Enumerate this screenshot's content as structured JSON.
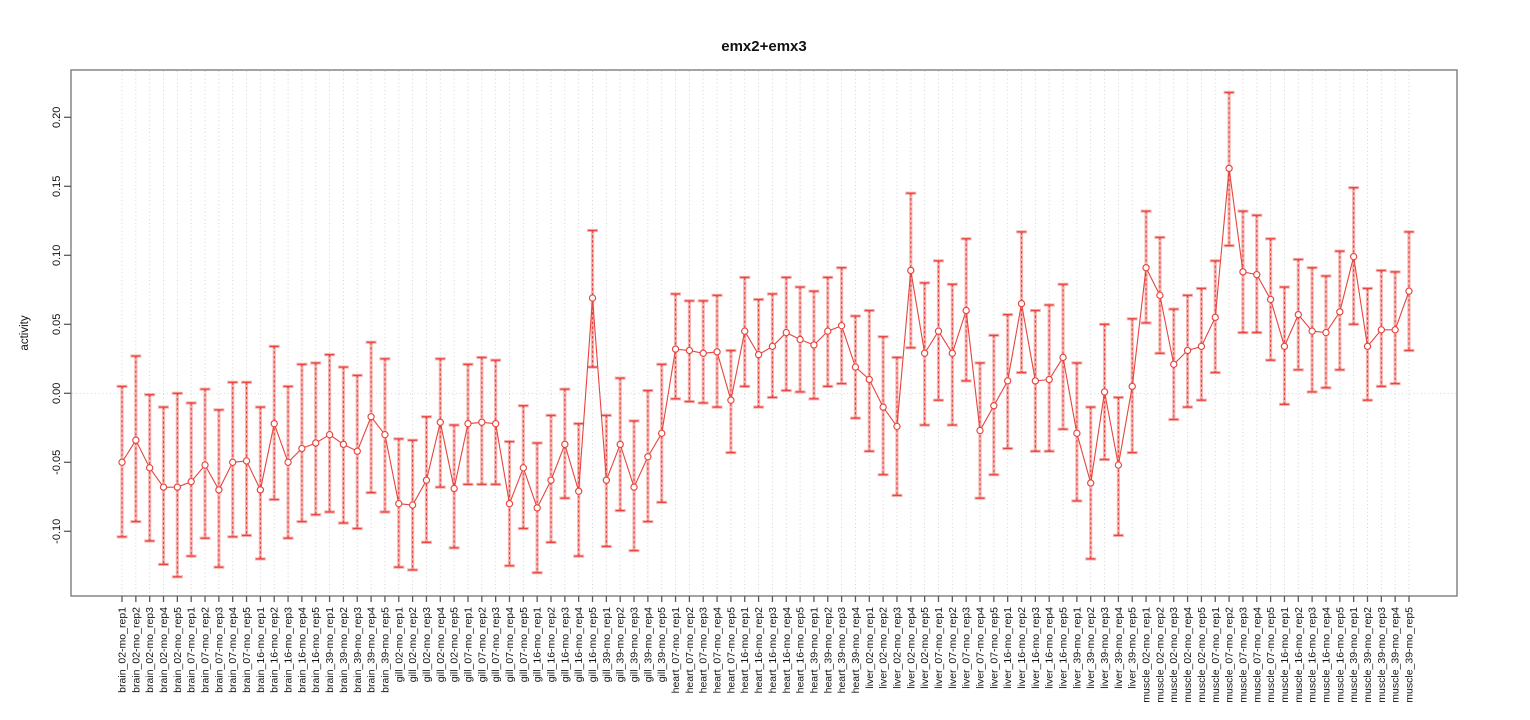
{
  "chart_data": {
    "type": "line",
    "title": "emx2+emx3",
    "xlabel": "",
    "ylabel": "activity",
    "grid": "vertical-dotted-per-category, dotted-zero-line",
    "legend": "none",
    "marker": "open-circle",
    "error_bars": "dashed-red-with-caps plus translucent-salmon-band",
    "ylim": [
      -0.147,
      0.234
    ],
    "ytick_values": [
      -0.1,
      -0.05,
      0.0,
      0.05,
      0.1,
      0.15,
      0.2
    ],
    "ytick_labels": [
      "-0.10",
      "-0.05",
      "0.00",
      "0.05",
      "0.10",
      "0.15",
      "0.20"
    ],
    "categories": [
      "brain_02-mo_rep1",
      "brain_02-mo_rep2",
      "brain_02-mo_rep3",
      "brain_02-mo_rep4",
      "brain_02-mo_rep5",
      "brain_07-mo_rep1",
      "brain_07-mo_rep2",
      "brain_07-mo_rep3",
      "brain_07-mo_rep4",
      "brain_07-mo_rep5",
      "brain_16-mo_rep1",
      "brain_16-mo_rep2",
      "brain_16-mo_rep3",
      "brain_16-mo_rep4",
      "brain_16-mo_rep5",
      "brain_39-mo_rep1",
      "brain_39-mo_rep2",
      "brain_39-mo_rep3",
      "brain_39-mo_rep4",
      "brain_39-mo_rep5",
      "gill_02-mo_rep1",
      "gill_02-mo_rep2",
      "gill_02-mo_rep3",
      "gill_02-mo_rep4",
      "gill_02-mo_rep5",
      "gill_07-mo_rep1",
      "gill_07-mo_rep2",
      "gill_07-mo_rep3",
      "gill_07-mo_rep4",
      "gill_07-mo_rep5",
      "gill_16-mo_rep1",
      "gill_16-mo_rep2",
      "gill_16-mo_rep3",
      "gill_16-mo_rep4",
      "gill_16-mo_rep5",
      "gill_39-mo_rep1",
      "gill_39-mo_rep2",
      "gill_39-mo_rep3",
      "gill_39-mo_rep4",
      "gill_39-mo_rep5",
      "heart_07-mo_rep1",
      "heart_07-mo_rep2",
      "heart_07-mo_rep3",
      "heart_07-mo_rep4",
      "heart_07-mo_rep5",
      "heart_16-mo_rep1",
      "heart_16-mo_rep2",
      "heart_16-mo_rep3",
      "heart_16-mo_rep4",
      "heart_16-mo_rep5",
      "heart_39-mo_rep1",
      "heart_39-mo_rep2",
      "heart_39-mo_rep3",
      "heart_39-mo_rep4",
      "liver_02-mo_rep1",
      "liver_02-mo_rep2",
      "liver_02-mo_rep3",
      "liver_02-mo_rep4",
      "liver_02-mo_rep5",
      "liver_07-mo_rep1",
      "liver_07-mo_rep2",
      "liver_07-mo_rep3",
      "liver_07-mo_rep4",
      "liver_07-mo_rep5",
      "liver_16-mo_rep1",
      "liver_16-mo_rep2",
      "liver_16-mo_rep3",
      "liver_16-mo_rep4",
      "liver_16-mo_rep5",
      "liver_39-mo_rep1",
      "liver_39-mo_rep2",
      "liver_39-mo_rep3",
      "liver_39-mo_rep4",
      "liver_39-mo_rep5",
      "muscle_02-mo_rep1",
      "muscle_02-mo_rep2",
      "muscle_02-mo_rep3",
      "muscle_02-mo_rep4",
      "muscle_02-mo_rep5",
      "muscle_07-mo_rep1",
      "muscle_07-mo_rep2",
      "muscle_07-mo_rep3",
      "muscle_07-mo_rep4",
      "muscle_07-mo_rep5",
      "muscle_16-mo_rep1",
      "muscle_16-mo_rep2",
      "muscle_16-mo_rep3",
      "muscle_16-mo_rep4",
      "muscle_16-mo_rep5",
      "muscle_39-mo_rep1",
      "muscle_39-mo_rep2",
      "muscle_39-mo_rep3",
      "muscle_39-mo_rep4",
      "muscle_39-mo_rep5"
    ],
    "series": [
      {
        "name": "activity",
        "values": [
          -0.05,
          -0.034,
          -0.054,
          -0.068,
          -0.068,
          -0.064,
          -0.052,
          -0.07,
          -0.05,
          -0.049,
          -0.07,
          -0.022,
          -0.05,
          -0.04,
          -0.036,
          -0.03,
          -0.037,
          -0.042,
          -0.017,
          -0.03,
          -0.08,
          -0.081,
          -0.063,
          -0.021,
          -0.069,
          -0.022,
          -0.021,
          -0.022,
          -0.08,
          -0.054,
          -0.083,
          -0.063,
          -0.037,
          -0.071,
          0.069,
          -0.063,
          -0.037,
          -0.068,
          -0.046,
          -0.029,
          0.032,
          0.031,
          0.029,
          0.03,
          -0.005,
          0.045,
          0.028,
          0.034,
          0.044,
          0.039,
          0.035,
          0.045,
          0.049,
          0.019,
          0.01,
          -0.01,
          -0.024,
          0.089,
          0.029,
          0.045,
          0.029,
          0.06,
          -0.027,
          -0.009,
          0.009,
          0.065,
          0.009,
          0.01,
          0.026,
          -0.029,
          -0.065,
          0.001,
          -0.052,
          0.005,
          0.091,
          0.071,
          0.021,
          0.031,
          0.034,
          0.055,
          0.163,
          0.088,
          0.086,
          0.068,
          0.034,
          0.057,
          0.045,
          0.044,
          0.059,
          0.099,
          0.034,
          0.046,
          0.046,
          0.074
        ],
        "err_lo": [
          -0.104,
          -0.093,
          -0.107,
          -0.124,
          -0.133,
          -0.118,
          -0.105,
          -0.126,
          -0.104,
          -0.103,
          -0.12,
          -0.077,
          -0.105,
          -0.093,
          -0.088,
          -0.086,
          -0.094,
          -0.098,
          -0.072,
          -0.086,
          -0.126,
          -0.128,
          -0.108,
          -0.068,
          -0.112,
          -0.066,
          -0.066,
          -0.066,
          -0.125,
          -0.098,
          -0.13,
          -0.108,
          -0.076,
          -0.118,
          0.019,
          -0.111,
          -0.085,
          -0.114,
          -0.093,
          -0.079,
          -0.004,
          -0.006,
          -0.007,
          -0.01,
          -0.043,
          0.005,
          -0.01,
          -0.003,
          0.002,
          0.001,
          -0.004,
          0.005,
          0.007,
          -0.018,
          -0.042,
          -0.059,
          -0.074,
          0.033,
          -0.023,
          -0.005,
          -0.023,
          0.009,
          -0.076,
          -0.059,
          -0.04,
          0.015,
          -0.042,
          -0.042,
          -0.026,
          -0.078,
          -0.12,
          -0.048,
          -0.103,
          -0.043,
          0.051,
          0.029,
          -0.019,
          -0.01,
          -0.005,
          0.015,
          0.107,
          0.044,
          0.044,
          0.024,
          -0.008,
          0.017,
          0.001,
          0.004,
          0.017,
          0.05,
          -0.005,
          0.005,
          0.007,
          0.031
        ],
        "err_hi": [
          0.005,
          0.027,
          -0.001,
          -0.01,
          0.0,
          -0.007,
          0.003,
          -0.012,
          0.008,
          0.008,
          -0.01,
          0.034,
          0.005,
          0.021,
          0.022,
          0.028,
          0.019,
          0.013,
          0.037,
          0.025,
          -0.033,
          -0.034,
          -0.017,
          0.025,
          -0.023,
          0.021,
          0.026,
          0.024,
          -0.035,
          -0.009,
          -0.036,
          -0.016,
          0.003,
          -0.022,
          0.118,
          -0.016,
          0.011,
          -0.02,
          0.002,
          0.021,
          0.072,
          0.067,
          0.067,
          0.071,
          0.031,
          0.084,
          0.068,
          0.072,
          0.084,
          0.077,
          0.074,
          0.084,
          0.091,
          0.056,
          0.06,
          0.041,
          0.026,
          0.145,
          0.08,
          0.096,
          0.079,
          0.112,
          0.022,
          0.042,
          0.057,
          0.117,
          0.06,
          0.064,
          0.079,
          0.022,
          -0.01,
          0.05,
          -0.003,
          0.054,
          0.132,
          0.113,
          0.061,
          0.071,
          0.076,
          0.096,
          0.218,
          0.132,
          0.129,
          0.112,
          0.077,
          0.097,
          0.091,
          0.085,
          0.103,
          0.149,
          0.076,
          0.089,
          0.088,
          0.117
        ]
      }
    ],
    "colors": {
      "line": "#e8443e",
      "point_stroke": "#e8443e",
      "point_fill": "#ffffff",
      "error_dash": "#e8443e",
      "error_band": "rgba(235,80,75,0.42)",
      "grid": "#cfcfcf",
      "zero_line": "#cfcfcf",
      "frame": "#7d7d7d",
      "tick": "#5a5a5a",
      "text": "#111111"
    }
  }
}
